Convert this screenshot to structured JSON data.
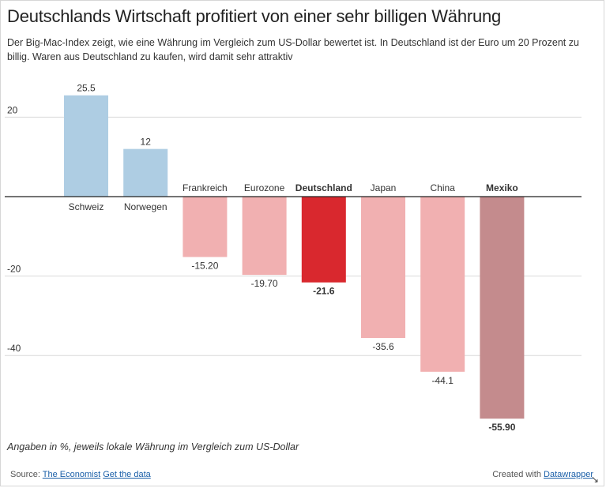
{
  "header": {
    "title": "Deutschlands Wirtschaft profitiert von einer sehr billigen Währung",
    "subtitle": "Der Big-Mac-Index zeigt, wie eine Währung im Vergleich zum US-Dollar bewertet ist. In Deutschland ist der Euro um 20 Prozent zu billig. Waren aus Deutschland zu kaufen, wird damit sehr attraktiv"
  },
  "chart_data": {
    "type": "bar",
    "categories": [
      "Schweiz",
      "Norwegen",
      "Frankreich",
      "Eurozone",
      "Deutschland",
      "Japan",
      "China",
      "Mexiko"
    ],
    "values": [
      25.5,
      12,
      -15.2,
      -19.7,
      -21.6,
      -35.6,
      -44.1,
      -55.9
    ],
    "value_labels": [
      "25.5",
      "12",
      "-15.20",
      "-19.70",
      "-21.6",
      "-35.6",
      "-44.1",
      "-55.90"
    ],
    "bold_categories": [
      "Deutschland",
      "Mexiko"
    ],
    "colors": [
      "#aecde3",
      "#aecde3",
      "#f1b0b1",
      "#f1b0b1",
      "#d9282e",
      "#f1b0b1",
      "#f1b0b1",
      "#c48b8d"
    ],
    "yticks": [
      20,
      -20,
      -40
    ],
    "ytick_labels": [
      "20",
      "-20",
      "-40"
    ],
    "ylim": [
      -58,
      30
    ],
    "grid": true,
    "title": "Deutschlands Wirtschaft profitiert von einer sehr billigen Währung",
    "xlabel": "",
    "ylabel": ""
  },
  "note": "Angaben in %, jeweils lokale Währung im Vergleich zum US-Dollar",
  "footer": {
    "source_prefix": "Source:",
    "source_link": "The Economist",
    "data_link": "Get the data",
    "credit_prefix": "Created with",
    "credit_link": "Datawrapper"
  }
}
